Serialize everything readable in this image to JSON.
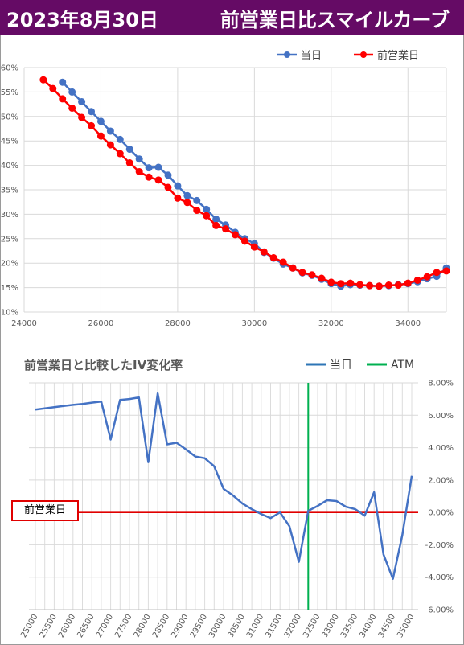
{
  "header": {
    "date": "2023年8月30日",
    "title": "前営業日比スマイルカーブ"
  },
  "colors": {
    "header_bg": "#650b65",
    "today": "#4472c4",
    "prev_day": "#ff0000",
    "atm": "#00b050",
    "baseline": "#e00000"
  },
  "chart_data": [
    {
      "type": "line",
      "title": "",
      "legend": {
        "position": "top-right",
        "entries": [
          "当日",
          "前営業日"
        ]
      },
      "xlim": [
        24000,
        35000
      ],
      "ylim": [
        10,
        60
      ],
      "x_ticks": [
        "24000",
        "26000",
        "28000",
        "30000",
        "32000",
        "34000"
      ],
      "y_ticks": [
        "10%",
        "15%",
        "20%",
        "25%",
        "30%",
        "35%",
        "40%",
        "45%",
        "50%",
        "55%",
        "60%"
      ],
      "grid": true,
      "series": [
        {
          "name": "当日",
          "x": [
            25000,
            25250,
            25500,
            25750,
            26000,
            26250,
            26500,
            26750,
            27000,
            27250,
            27500,
            27750,
            28000,
            28250,
            28500,
            28750,
            29000,
            29250,
            29500,
            29750,
            30000,
            30250,
            30500,
            30750,
            31000,
            31250,
            31500,
            31750,
            32000,
            32250,
            32500,
            32750,
            33000,
            33250,
            33500,
            33750,
            34000,
            34250,
            34500,
            34750,
            35000
          ],
          "y": [
            57.0,
            55.0,
            53.0,
            51.0,
            49.0,
            47.0,
            45.3,
            43.3,
            41.3,
            39.5,
            39.6,
            38.0,
            35.8,
            33.8,
            32.8,
            31.0,
            29.0,
            27.8,
            26.3,
            25.0,
            24.0,
            22.2,
            21.0,
            19.8,
            19.0,
            18.0,
            17.5,
            16.7,
            15.8,
            15.3,
            15.6,
            15.5,
            15.4,
            15.3,
            15.4,
            15.6,
            15.8,
            16.2,
            16.8,
            17.3,
            19.0
          ]
        },
        {
          "name": "前営業日",
          "x": [
            24500,
            24750,
            25000,
            25250,
            25500,
            25750,
            26000,
            26250,
            26500,
            26750,
            27000,
            27250,
            27500,
            27750,
            28000,
            28250,
            28500,
            28750,
            29000,
            29250,
            29500,
            29750,
            30000,
            30250,
            30500,
            30750,
            31000,
            31250,
            31500,
            31750,
            32000,
            32250,
            32500,
            32750,
            33000,
            33250,
            33500,
            33750,
            34000,
            34250,
            34500,
            34750,
            35000
          ],
          "y": [
            57.5,
            55.7,
            53.6,
            51.7,
            49.8,
            48.1,
            46.0,
            44.2,
            42.4,
            40.5,
            38.7,
            37.6,
            37.0,
            35.5,
            33.3,
            32.4,
            30.8,
            29.7,
            27.7,
            27.0,
            25.8,
            24.5,
            23.3,
            22.3,
            21.1,
            20.2,
            19.0,
            18.1,
            17.6,
            16.9,
            16.1,
            15.8,
            15.9,
            15.6,
            15.4,
            15.3,
            15.5,
            15.5,
            15.9,
            16.5,
            17.2,
            18.1,
            18.4
          ]
        }
      ]
    },
    {
      "type": "line",
      "title": "前営業日と比較したIV変化率",
      "legend": {
        "position": "top-right",
        "entries": [
          "当日",
          "ATM"
        ]
      },
      "ylim": [
        -6,
        8
      ],
      "y_ticks": [
        "8.00%",
        "6.00%",
        "4.00%",
        "2.00%",
        "0.00%",
        "-2.00%",
        "-4.00%",
        "-6.00%"
      ],
      "grid": true,
      "categories": [
        "25000",
        "25250",
        "25500",
        "25750",
        "26000",
        "26250",
        "26500",
        "26750",
        "27000",
        "27250",
        "27500",
        "27750",
        "28000",
        "28250",
        "28500",
        "28750",
        "29000",
        "29250",
        "29500",
        "29750",
        "30000",
        "30250",
        "30500",
        "30750",
        "31000",
        "31250",
        "31500",
        "31750",
        "32000",
        "32250",
        "32500",
        "32750",
        "33000",
        "33250",
        "33500",
        "33750",
        "34000",
        "34250",
        "34500",
        "34750",
        "35000"
      ],
      "x_tick_labels": [
        "25000",
        "25500",
        "26000",
        "26500",
        "27000",
        "27500",
        "28000",
        "28500",
        "29000",
        "29500",
        "30000",
        "30500",
        "31000",
        "31500",
        "32000",
        "32500",
        "33000",
        "33500",
        "34000",
        "34500",
        "35000"
      ],
      "series": [
        {
          "name": "当日",
          "values": [
            6.35,
            6.42,
            6.5,
            6.57,
            6.64,
            6.7,
            6.78,
            6.85,
            4.5,
            6.95,
            7.0,
            7.1,
            3.1,
            7.35,
            4.2,
            4.3,
            3.9,
            3.45,
            3.35,
            2.85,
            1.45,
            1.05,
            0.55,
            0.2,
            -0.1,
            -0.35,
            0.0,
            -0.85,
            -3.05,
            0.1,
            0.4,
            0.75,
            0.7,
            0.35,
            0.2,
            -0.2,
            1.25,
            -2.6,
            -4.1,
            -1.4,
            2.25
          ]
        }
      ],
      "atm": "32250",
      "baseline_label": "前営業日"
    }
  ]
}
